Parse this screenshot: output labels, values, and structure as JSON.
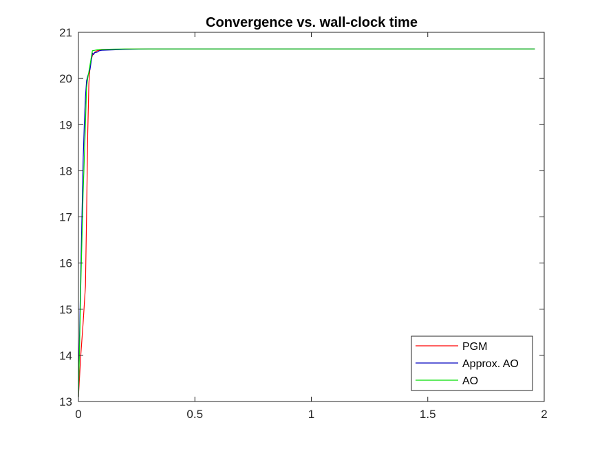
{
  "chart_data": {
    "type": "line",
    "title": "Convergence vs. wall-clock time",
    "xlabel": "",
    "ylabel": "",
    "xlim": [
      0,
      2
    ],
    "ylim": [
      13,
      21
    ],
    "xticks": [
      0,
      0.5,
      1,
      1.5,
      2
    ],
    "xtick_labels": [
      "0",
      "0.5",
      "1",
      "1.5",
      "2"
    ],
    "yticks": [
      13,
      14,
      15,
      16,
      17,
      18,
      19,
      20,
      21
    ],
    "ytick_labels": [
      "13",
      "14",
      "15",
      "16",
      "17",
      "18",
      "19",
      "20",
      "21"
    ],
    "grid": false,
    "legend_position": "bottom-right",
    "series": [
      {
        "name": "PGM",
        "color": "#ff0000",
        "x": [
          0,
          0.01,
          0.02,
          0.03,
          0.035,
          0.04,
          0.045,
          0.05,
          0.055,
          0.06,
          0.07,
          0.08,
          0.1,
          0.15,
          0.2,
          0.3,
          0.5,
          1.0,
          1.5,
          1.96
        ],
        "y": [
          13.1,
          14.0,
          14.7,
          15.5,
          17.0,
          18.8,
          19.9,
          20.25,
          20.4,
          20.5,
          20.57,
          20.6,
          20.62,
          20.63,
          20.635,
          20.64,
          20.64,
          20.64,
          20.64,
          20.64
        ]
      },
      {
        "name": "Approx. AO",
        "color": "#0000bf",
        "x": [
          0,
          0.005,
          0.01,
          0.015,
          0.02,
          0.025,
          0.03,
          0.035,
          0.04,
          0.05,
          0.06,
          0.065,
          0.07,
          0.08,
          0.09,
          0.1,
          0.15,
          0.2,
          0.3,
          0.5,
          1.0,
          1.5,
          1.96
        ],
        "y": [
          13.1,
          14.5,
          15.8,
          17.0,
          18.2,
          19.0,
          19.6,
          19.95,
          20.05,
          20.2,
          20.55,
          20.52,
          20.56,
          20.57,
          20.6,
          20.61,
          20.62,
          20.63,
          20.64,
          20.64,
          20.64,
          20.64,
          20.64
        ]
      },
      {
        "name": "AO",
        "color": "#00dd00",
        "x": [
          0,
          0.005,
          0.01,
          0.02,
          0.03,
          0.035,
          0.04,
          0.05,
          0.06,
          0.07,
          0.08,
          0.1,
          0.15,
          0.2,
          0.3,
          0.5,
          1.0,
          1.5,
          1.96
        ],
        "y": [
          13.1,
          14.2,
          15.5,
          17.5,
          19.0,
          19.8,
          20.0,
          20.3,
          20.6,
          20.61,
          20.62,
          20.63,
          20.635,
          20.64,
          20.64,
          20.64,
          20.64,
          20.64,
          20.64
        ]
      }
    ]
  }
}
